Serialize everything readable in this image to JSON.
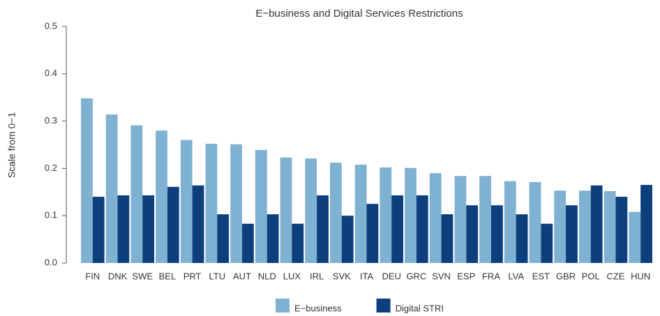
{
  "chart_data": {
    "type": "bar",
    "title": "E−business and Digital Services Restrictions",
    "y_label": "Scale from 0−1",
    "categories": [
      "FIN",
      "DNK",
      "SWE",
      "BEL",
      "PRT",
      "LTU",
      "AUT",
      "NLD",
      "LUX",
      "IRL",
      "SVK",
      "ITA",
      "DEU",
      "GRC",
      "SVN",
      "ESP",
      "FRA",
      "LVA",
      "EST",
      "GBR",
      "POL",
      "CZE",
      "HUN"
    ],
    "series": [
      {
        "name": "E−business",
        "color": "#7eb1d2",
        "values": [
          0.348,
          0.314,
          0.291,
          0.28,
          0.26,
          0.252,
          0.251,
          0.239,
          0.223,
          0.221,
          0.212,
          0.208,
          0.202,
          0.201,
          0.19,
          0.184,
          0.184,
          0.173,
          0.171,
          0.153,
          0.153,
          0.152,
          0.108
        ]
      },
      {
        "name": "Digital STRI",
        "color": "#0c3f7c",
        "values": [
          0.14,
          0.143,
          0.143,
          0.161,
          0.164,
          0.103,
          0.083,
          0.103,
          0.083,
          0.143,
          0.1,
          0.125,
          0.143,
          0.143,
          0.103,
          0.122,
          0.122,
          0.103,
          0.083,
          0.122,
          0.164,
          0.14,
          0.165
        ]
      }
    ],
    "ylim": [
      0,
      0.5
    ],
    "yticks": [
      {
        "value": 0,
        "label": "0.0"
      },
      0.1,
      0.2,
      0.3,
      0.4,
      0.5
    ],
    "legend": "bottom"
  }
}
